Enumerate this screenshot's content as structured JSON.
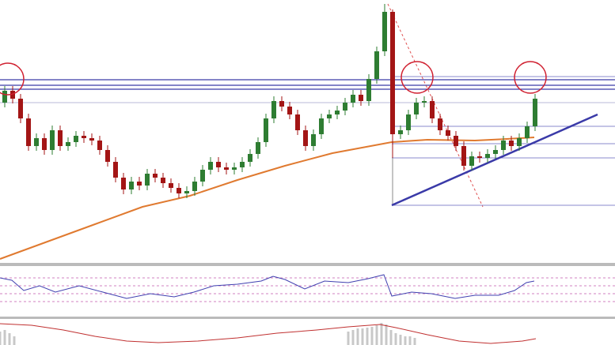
{
  "chart_data": {
    "type": "candlestick",
    "ylim": [
      0,
      330
    ],
    "up_color": "#2e7d32",
    "down_color": "#a31515",
    "open": [
      200,
      215,
      205,
      180,
      145,
      155,
      140,
      165,
      145,
      150,
      158,
      155,
      152,
      140,
      125,
      105,
      90,
      100,
      95,
      110,
      105,
      98,
      92,
      85,
      88,
      100,
      115,
      125,
      118,
      115,
      118,
      125,
      135,
      150,
      180,
      202,
      195,
      185,
      165,
      145,
      160,
      180,
      185,
      190,
      200,
      210,
      202,
      230,
      265,
      315,
      160,
      165,
      185,
      200,
      202,
      180,
      165,
      158,
      145,
      120,
      132,
      130,
      135,
      140,
      152,
      145,
      155,
      170
    ],
    "high": [
      221,
      221,
      211,
      186,
      161,
      161,
      171,
      171,
      156,
      164,
      164,
      161,
      158,
      146,
      131,
      111,
      106,
      106,
      116,
      116,
      111,
      104,
      98,
      94,
      106,
      121,
      131,
      131,
      124,
      124,
      131,
      141,
      156,
      186,
      208,
      208,
      201,
      191,
      171,
      166,
      186,
      191,
      196,
      206,
      216,
      216,
      236,
      271,
      325,
      318,
      171,
      191,
      206,
      208,
      208,
      186,
      171,
      164,
      151,
      138,
      138,
      141,
      146,
      158,
      158,
      161,
      176,
      211
    ],
    "low": [
      194,
      199,
      174,
      139,
      139,
      134,
      134,
      139,
      139,
      144,
      149,
      146,
      134,
      119,
      99,
      84,
      84,
      89,
      89,
      99,
      92,
      86,
      79,
      79,
      82,
      94,
      109,
      112,
      109,
      109,
      112,
      119,
      129,
      144,
      174,
      189,
      179,
      159,
      139,
      139,
      154,
      174,
      179,
      184,
      194,
      196,
      196,
      224,
      259,
      130,
      154,
      159,
      179,
      194,
      174,
      159,
      152,
      139,
      114,
      114,
      124,
      124,
      129,
      134,
      139,
      139,
      149,
      164
    ],
    "close": [
      215,
      205,
      180,
      145,
      155,
      140,
      165,
      145,
      150,
      158,
      155,
      152,
      140,
      125,
      105,
      90,
      100,
      95,
      110,
      105,
      98,
      92,
      85,
      88,
      100,
      115,
      125,
      118,
      115,
      118,
      125,
      135,
      150,
      180,
      202,
      195,
      185,
      165,
      145,
      160,
      180,
      185,
      190,
      200,
      210,
      202,
      230,
      265,
      315,
      160,
      165,
      185,
      200,
      202,
      180,
      165,
      158,
      145,
      120,
      132,
      130,
      135,
      140,
      152,
      145,
      155,
      170,
      205
    ]
  }
}
